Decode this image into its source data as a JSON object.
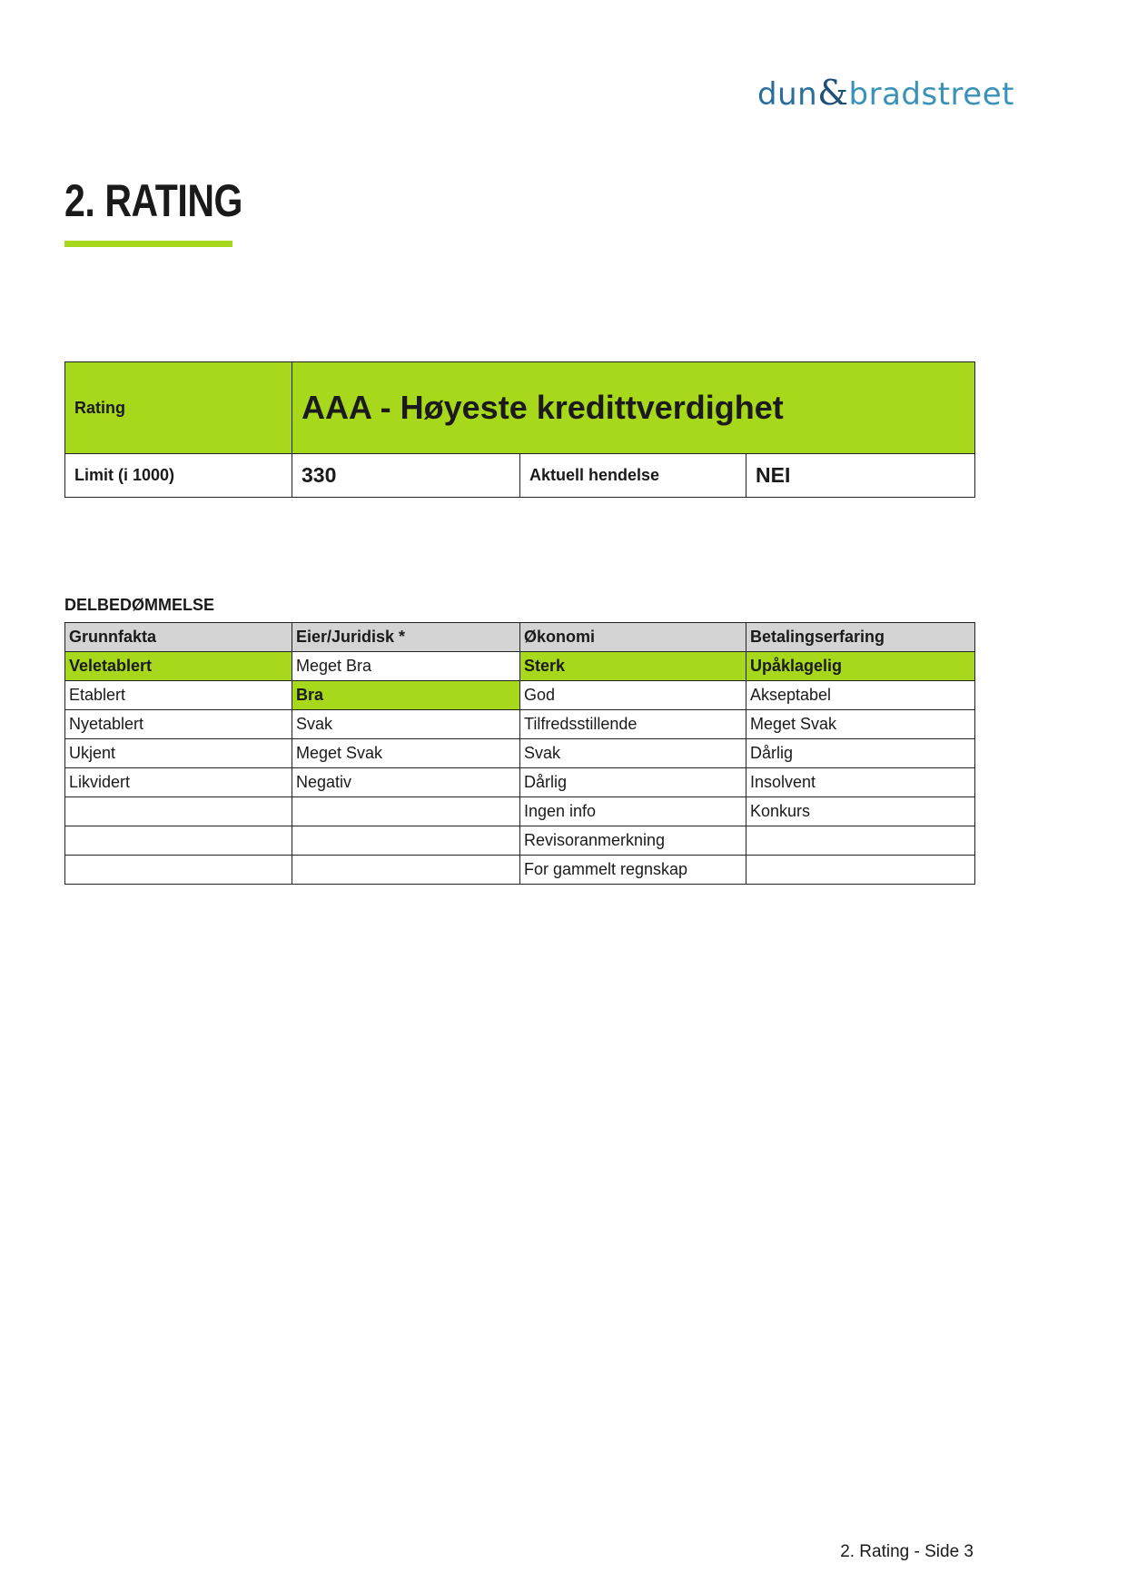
{
  "logo": {
    "part1": "dun",
    "amp": "&",
    "part2": "bradstreet"
  },
  "title": "2. RATING",
  "accent_color": "#a8d81c",
  "summary": {
    "rating_label": "Rating",
    "rating_value": "AAA - Høyeste kredittverdighet",
    "limit_label": "Limit (i 1000)",
    "limit_value": "330",
    "event_label": "Aktuell hendelse",
    "event_value": "NEI"
  },
  "sub_title": "DELBEDØMMELSE",
  "subratings": {
    "headers": [
      "Grunnfakta",
      "Eier/Juridisk *",
      "Økonomi",
      "Betalingserfaring"
    ],
    "rows": [
      [
        {
          "text": "Veletablert",
          "selected": true
        },
        {
          "text": "Meget Bra",
          "selected": false
        },
        {
          "text": "Sterk",
          "selected": true
        },
        {
          "text": "Upåklagelig",
          "selected": true
        }
      ],
      [
        {
          "text": "Etablert",
          "selected": false
        },
        {
          "text": "Bra",
          "selected": true
        },
        {
          "text": "God",
          "selected": false
        },
        {
          "text": "Akseptabel",
          "selected": false
        }
      ],
      [
        {
          "text": "Nyetablert",
          "selected": false
        },
        {
          "text": "Svak",
          "selected": false
        },
        {
          "text": "Tilfredsstillende",
          "selected": false
        },
        {
          "text": "Meget Svak",
          "selected": false
        }
      ],
      [
        {
          "text": "Ukjent",
          "selected": false
        },
        {
          "text": "Meget Svak",
          "selected": false
        },
        {
          "text": "Svak",
          "selected": false
        },
        {
          "text": "Dårlig",
          "selected": false
        }
      ],
      [
        {
          "text": "Likvidert",
          "selected": false
        },
        {
          "text": "Negativ",
          "selected": false
        },
        {
          "text": "Dårlig",
          "selected": false
        },
        {
          "text": "Insolvent",
          "selected": false
        }
      ],
      [
        {
          "text": "",
          "selected": false
        },
        {
          "text": "",
          "selected": false
        },
        {
          "text": "Ingen info",
          "selected": false
        },
        {
          "text": "Konkurs",
          "selected": false
        }
      ],
      [
        {
          "text": "",
          "selected": false
        },
        {
          "text": "",
          "selected": false
        },
        {
          "text": "Revisoranmerkning",
          "selected": false
        },
        {
          "text": "",
          "selected": false
        }
      ],
      [
        {
          "text": "",
          "selected": false
        },
        {
          "text": "",
          "selected": false
        },
        {
          "text": "For gammelt regnskap",
          "selected": false
        },
        {
          "text": "",
          "selected": false
        }
      ]
    ]
  },
  "footer": "2. Rating - Side 3"
}
